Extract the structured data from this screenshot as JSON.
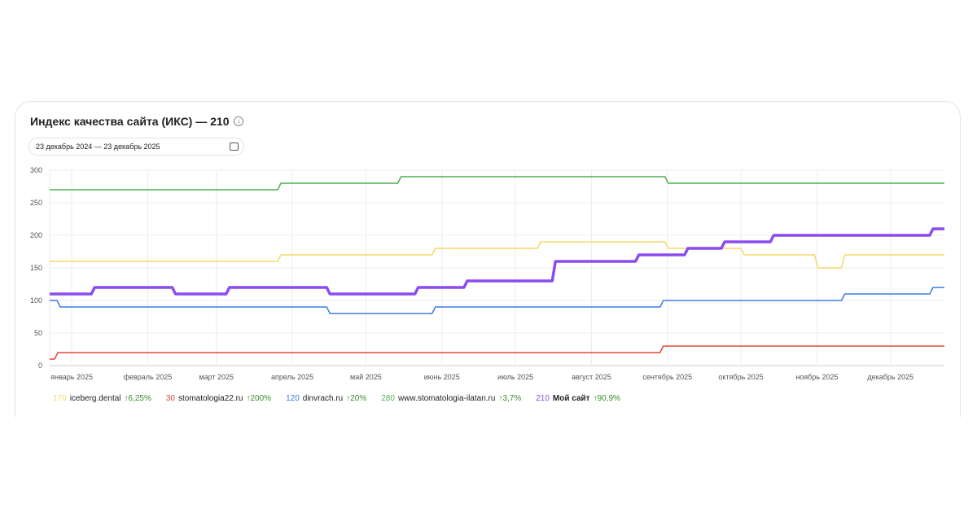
{
  "title": "Индекс качества сайта (ИКС) — 210",
  "date_range": "23 декабрь 2024 — 23 декабрь 2025",
  "icons": {
    "info": "info-icon",
    "calendar": "calendar-icon"
  },
  "chart_data": {
    "type": "line",
    "step": true,
    "x_range": [
      "2024-12-23",
      "2025-12-23"
    ],
    "ylim": [
      0,
      300
    ],
    "y_ticks": [
      "0",
      "50",
      "100",
      "150",
      "200",
      "250",
      "300"
    ],
    "x_ticks": [
      {
        "date": "2025-01-01",
        "label": "январь 2025"
      },
      {
        "date": "2025-02-01",
        "label": "февраль 2025"
      },
      {
        "date": "2025-03-01",
        "label": "март 2025"
      },
      {
        "date": "2025-04-01",
        "label": "апрель 2025"
      },
      {
        "date": "2025-05-01",
        "label": "май 2025"
      },
      {
        "date": "2025-06-01",
        "label": "июнь 2025"
      },
      {
        "date": "2025-07-01",
        "label": "июль 2025"
      },
      {
        "date": "2025-08-01",
        "label": "август 2025"
      },
      {
        "date": "2025-09-01",
        "label": "сентябрь 2025"
      },
      {
        "date": "2025-10-01",
        "label": "октябрь 2025"
      },
      {
        "date": "2025-11-01",
        "label": "ноябрь 2025"
      },
      {
        "date": "2025-12-01",
        "label": "декабрь 2025"
      }
    ],
    "grid": true,
    "legend_position": "bottom",
    "series": [
      {
        "name": "iceberg.dental",
        "current": "170",
        "change": "↑6,25%",
        "color": "#f5d86a",
        "width": 1.5,
        "steps": [
          [
            "2024-12-23",
            160
          ],
          [
            "2025-03-27",
            170
          ],
          [
            "2025-05-29",
            180
          ],
          [
            "2025-07-11",
            190
          ],
          [
            "2025-09-01",
            180
          ],
          [
            "2025-10-02",
            170
          ],
          [
            "2025-11-01",
            150
          ],
          [
            "2025-11-12",
            170
          ]
        ]
      },
      {
        "name": "stomatologia22.ru",
        "current": "30",
        "change": "↑200%",
        "color": "#e0483b",
        "width": 1.5,
        "steps": [
          [
            "2024-12-23",
            10
          ],
          [
            "2024-12-26",
            20
          ],
          [
            "2025-08-30",
            30
          ]
        ]
      },
      {
        "name": "dinvrach.ru",
        "current": "120",
        "change": "↑20%",
        "color": "#3b7de0",
        "width": 1.5,
        "steps": [
          [
            "2024-12-23",
            100
          ],
          [
            "2024-12-27",
            90
          ],
          [
            "2025-04-16",
            80
          ],
          [
            "2025-05-29",
            90
          ],
          [
            "2025-08-30",
            100
          ],
          [
            "2025-11-12",
            110
          ],
          [
            "2025-12-18",
            120
          ]
        ]
      },
      {
        "name": "www.stomatologia-ilatan.ru",
        "current": "280",
        "change": "↑3,7%",
        "color": "#4caf50",
        "width": 1.5,
        "steps": [
          [
            "2024-12-23",
            270
          ],
          [
            "2025-03-27",
            280
          ],
          [
            "2025-05-15",
            290
          ],
          [
            "2025-09-01",
            280
          ]
        ]
      },
      {
        "name": "Мой сайт",
        "current": "210",
        "change": "↑90,9%",
        "color": "#8a4cf0",
        "width": 3.5,
        "bold": true,
        "steps": [
          [
            "2024-12-23",
            110
          ],
          [
            "2025-01-10",
            120
          ],
          [
            "2025-02-12",
            110
          ],
          [
            "2025-03-06",
            120
          ],
          [
            "2025-04-16",
            110
          ],
          [
            "2025-05-22",
            120
          ],
          [
            "2025-06-11",
            130
          ],
          [
            "2025-07-17",
            160
          ],
          [
            "2025-08-20",
            170
          ],
          [
            "2025-09-09",
            180
          ],
          [
            "2025-09-24",
            190
          ],
          [
            "2025-10-14",
            200
          ],
          [
            "2025-12-18",
            210
          ]
        ]
      }
    ]
  }
}
